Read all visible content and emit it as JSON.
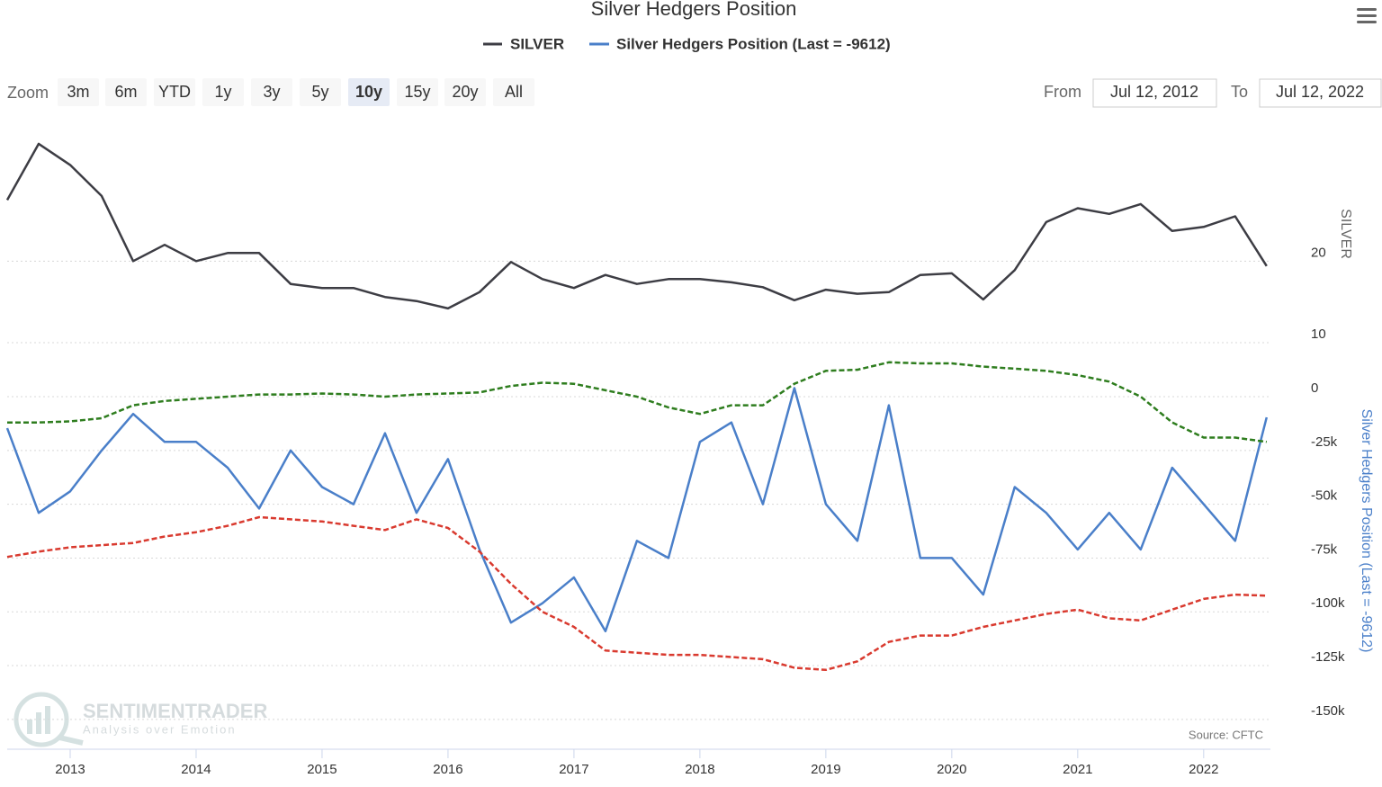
{
  "menu": {
    "label": "Zoom",
    "buttons": [
      "3m",
      "6m",
      "YTD",
      "1y",
      "3y",
      "5y",
      "10y",
      "15y",
      "20y",
      "All"
    ],
    "selected": "10y"
  },
  "range": {
    "from_label": "From",
    "from": "Jul 12, 2012",
    "to_label": "To",
    "to": "Jul 12, 2022"
  },
  "watermark": {
    "brand": "SENTIMENTRADER",
    "tagline": "Analysis over Emotion"
  },
  "chart_data": [
    {
      "type": "line",
      "title": "Silver Hedgers Position",
      "y_label": "SILVER",
      "x": [
        2012.5,
        2012.75,
        2013,
        2013.25,
        2013.5,
        2013.75,
        2014,
        2014.25,
        2014.5,
        2014.75,
        2015,
        2015.25,
        2015.5,
        2015.75,
        2016,
        2016.25,
        2016.5,
        2016.75,
        2017,
        2017.25,
        2017.5,
        2017.75,
        2018,
        2018.25,
        2018.5,
        2018.75,
        2019,
        2019.25,
        2019.5,
        2019.75,
        2020,
        2020.25,
        2020.5,
        2020.75,
        2021,
        2021.25,
        2021.5,
        2021.75,
        2022,
        2022.25,
        2022.5
      ],
      "xlim": [
        2012.5,
        2022.53
      ],
      "ylim": [
        9,
        36
      ],
      "yticks": [
        10,
        20
      ],
      "grid": true,
      "series": [
        {
          "name": "SILVER",
          "color": "#3d3d44",
          "values": [
            27.5,
            34.4,
            31.8,
            28,
            20,
            22,
            20,
            21,
            21,
            17.2,
            16.7,
            16.7,
            15.6,
            15.1,
            14.2,
            16.2,
            19.9,
            17.8,
            16.7,
            18.3,
            17.2,
            17.8,
            17.8,
            17.4,
            16.8,
            15.2,
            16.5,
            16,
            16.2,
            18.3,
            18.5,
            15.3,
            18.9,
            24.8,
            26.5,
            25.8,
            27,
            23.7,
            24.2,
            25.5,
            19.4
          ]
        }
      ]
    },
    {
      "type": "line",
      "y_label": "Silver Hedgers Position (Last = -9612)",
      "source": "Source: CFTC",
      "x": [
        2012.5,
        2012.75,
        2013,
        2013.25,
        2013.5,
        2013.75,
        2014,
        2014.25,
        2014.5,
        2014.75,
        2015,
        2015.25,
        2015.5,
        2015.75,
        2016,
        2016.25,
        2016.5,
        2016.75,
        2017,
        2017.25,
        2017.5,
        2017.75,
        2018,
        2018.25,
        2018.5,
        2018.75,
        2019,
        2019.25,
        2019.5,
        2019.75,
        2020,
        2020.25,
        2020.5,
        2020.75,
        2021,
        2021.25,
        2021.5,
        2021.75,
        2022,
        2022.25,
        2022.5
      ],
      "xlim": [
        2012.5,
        2022.53
      ],
      "xticks": [
        2013,
        2014,
        2015,
        2016,
        2017,
        2018,
        2019,
        2020,
        2021,
        2022
      ],
      "ylim": [
        -155000,
        20000
      ],
      "grid": true,
      "yticks": [
        {
          "value": 0,
          "label": "0"
        },
        {
          "value": -25000,
          "label": "-25k"
        },
        {
          "value": -50000,
          "label": "-50k"
        },
        {
          "value": -75000,
          "label": "-75k"
        },
        {
          "value": -100000,
          "label": "-100k"
        },
        {
          "value": -125000,
          "label": "-125k"
        },
        {
          "value": -150000,
          "label": "-150k"
        }
      ],
      "series": [
        {
          "name": "Silver Hedgers Position (Last = -9612)",
          "color": "#4a7fc9",
          "values": [
            -14600,
            -54000,
            -44000,
            -25000,
            -8000,
            -21000,
            -21000,
            -33000,
            -52000,
            -25000,
            -42000,
            -50000,
            -17000,
            -54000,
            -29000,
            -71000,
            -105000,
            -96000,
            -84000,
            -109000,
            -67000,
            -75000,
            -21000,
            -12000,
            -50000,
            4000,
            -50000,
            -67000,
            -4000,
            -75000,
            -75000,
            -92000,
            -42000,
            -54000,
            -71000,
            -54000,
            -71000,
            -33000,
            -50000,
            -67000,
            -9612
          ]
        },
        {
          "color": "#2e7d1e",
          "dashed": true,
          "values": [
            -12000,
            -12000,
            -11500,
            -10000,
            -4000,
            -2000,
            -1000,
            0,
            1000,
            1000,
            1500,
            1000,
            0,
            1000,
            1500,
            2000,
            5000,
            6500,
            6000,
            3000,
            0,
            -5000,
            -8000,
            -4000,
            -4000,
            6000,
            12000,
            12500,
            16000,
            15500,
            15500,
            14000,
            13000,
            12000,
            10000,
            7000,
            0,
            -12000,
            -19000,
            -19000,
            -21000
          ]
        },
        {
          "color": "#d93a2f",
          "dashed": true,
          "values": [
            -74500,
            -72000,
            -70000,
            -69000,
            -68000,
            -65000,
            -63000,
            -60000,
            -56000,
            -57000,
            -58000,
            -60000,
            -62000,
            -57000,
            -61000,
            -72000,
            -87000,
            -100000,
            -107000,
            -118000,
            -119000,
            -120000,
            -120000,
            -121000,
            -122000,
            -126000,
            -127000,
            -123000,
            -114000,
            -111000,
            -111000,
            -107000,
            -104000,
            -101000,
            -99000,
            -103000,
            -104000,
            -99000,
            -94000,
            -92000,
            -92500
          ]
        }
      ]
    }
  ]
}
